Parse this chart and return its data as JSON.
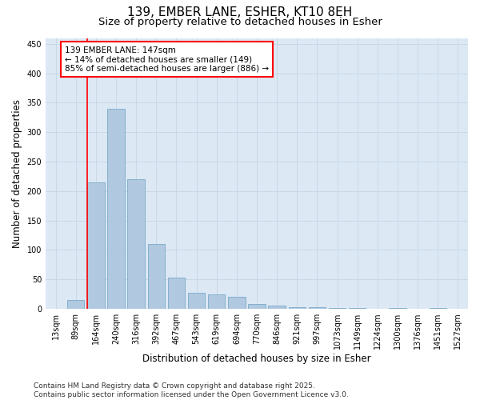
{
  "title1": "139, EMBER LANE, ESHER, KT10 8EH",
  "title2": "Size of property relative to detached houses in Esher",
  "xlabel": "Distribution of detached houses by size in Esher",
  "ylabel": "Number of detached properties",
  "categories": [
    "13sqm",
    "89sqm",
    "164sqm",
    "240sqm",
    "316sqm",
    "392sqm",
    "467sqm",
    "543sqm",
    "619sqm",
    "694sqm",
    "770sqm",
    "846sqm",
    "921sqm",
    "997sqm",
    "1073sqm",
    "1149sqm",
    "1224sqm",
    "1300sqm",
    "1376sqm",
    "1451sqm",
    "1527sqm"
  ],
  "values": [
    0,
    15,
    215,
    340,
    220,
    110,
    53,
    27,
    25,
    20,
    8,
    5,
    2,
    2,
    1,
    1,
    0,
    1,
    0,
    1,
    0
  ],
  "bar_color": "#b0c8e0",
  "bar_edge_color": "#7aaac8",
  "annotation_text": "139 EMBER LANE: 147sqm\n← 14% of detached houses are smaller (149)\n85% of semi-detached houses are larger (886) →",
  "annotation_box_color": "white",
  "annotation_box_edge_color": "red",
  "red_line_color": "red",
  "red_line_x": 1.575,
  "ylim": [
    0,
    460
  ],
  "yticks": [
    0,
    50,
    100,
    150,
    200,
    250,
    300,
    350,
    400,
    450
  ],
  "grid_color": "#c8d8e8",
  "background_color": "#dce8f4",
  "footer_text": "Contains HM Land Registry data © Crown copyright and database right 2025.\nContains public sector information licensed under the Open Government Licence v3.0.",
  "title_fontsize": 11,
  "subtitle_fontsize": 9.5,
  "axis_label_fontsize": 8.5,
  "tick_fontsize": 7,
  "annotation_fontsize": 7.5,
  "footer_fontsize": 6.5
}
